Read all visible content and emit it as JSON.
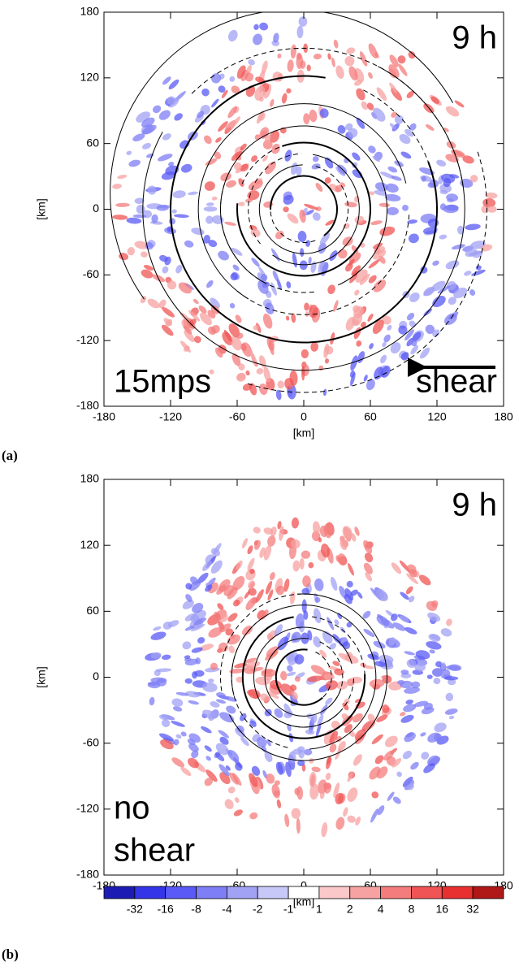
{
  "chart_data": [
    {
      "type": "contour",
      "panel_label": "(a)",
      "x_label": "[km]",
      "y_label": "[km]",
      "xlim": [
        -180,
        180
      ],
      "ylim": [
        -180,
        180
      ],
      "xticks": [
        -180,
        -120,
        -60,
        0,
        60,
        120,
        180
      ],
      "yticks": [
        -180,
        -120,
        -60,
        0,
        60,
        120,
        180
      ],
      "annotations": [
        {
          "text": "9 h",
          "position": "top-right"
        },
        {
          "text": "15mps",
          "position": "bottom-left"
        },
        {
          "text": "shear",
          "position": "bottom-right"
        }
      ]
    },
    {
      "type": "contour",
      "panel_label": "(b)",
      "x_label": "[km]",
      "y_label": "[km]",
      "xlim": [
        -180,
        180
      ],
      "ylim": [
        -180,
        180
      ],
      "xticks": [
        -180,
        -120,
        -60,
        0,
        60,
        120,
        180
      ],
      "yticks": [
        -180,
        -120,
        -60,
        0,
        60,
        120,
        180
      ],
      "annotations": [
        {
          "text": "9 h",
          "position": "top-right"
        },
        {
          "text": "no",
          "position": "bottom-left-upper"
        },
        {
          "text": "shear",
          "position": "bottom-left"
        }
      ]
    }
  ],
  "colorbar": {
    "labels": [
      -32,
      -16,
      -8,
      -4,
      -2,
      -1,
      1,
      2,
      4,
      8,
      16,
      32
    ],
    "colors": [
      "#1c1cb4",
      "#3434e8",
      "#5a5af6",
      "#7e7ef6",
      "#a2a2f4",
      "#c8c8f8",
      "#ffffff",
      "#fac8c8",
      "#f7a2a2",
      "#f47c7c",
      "#f05454",
      "#e83030",
      "#b01818"
    ]
  }
}
